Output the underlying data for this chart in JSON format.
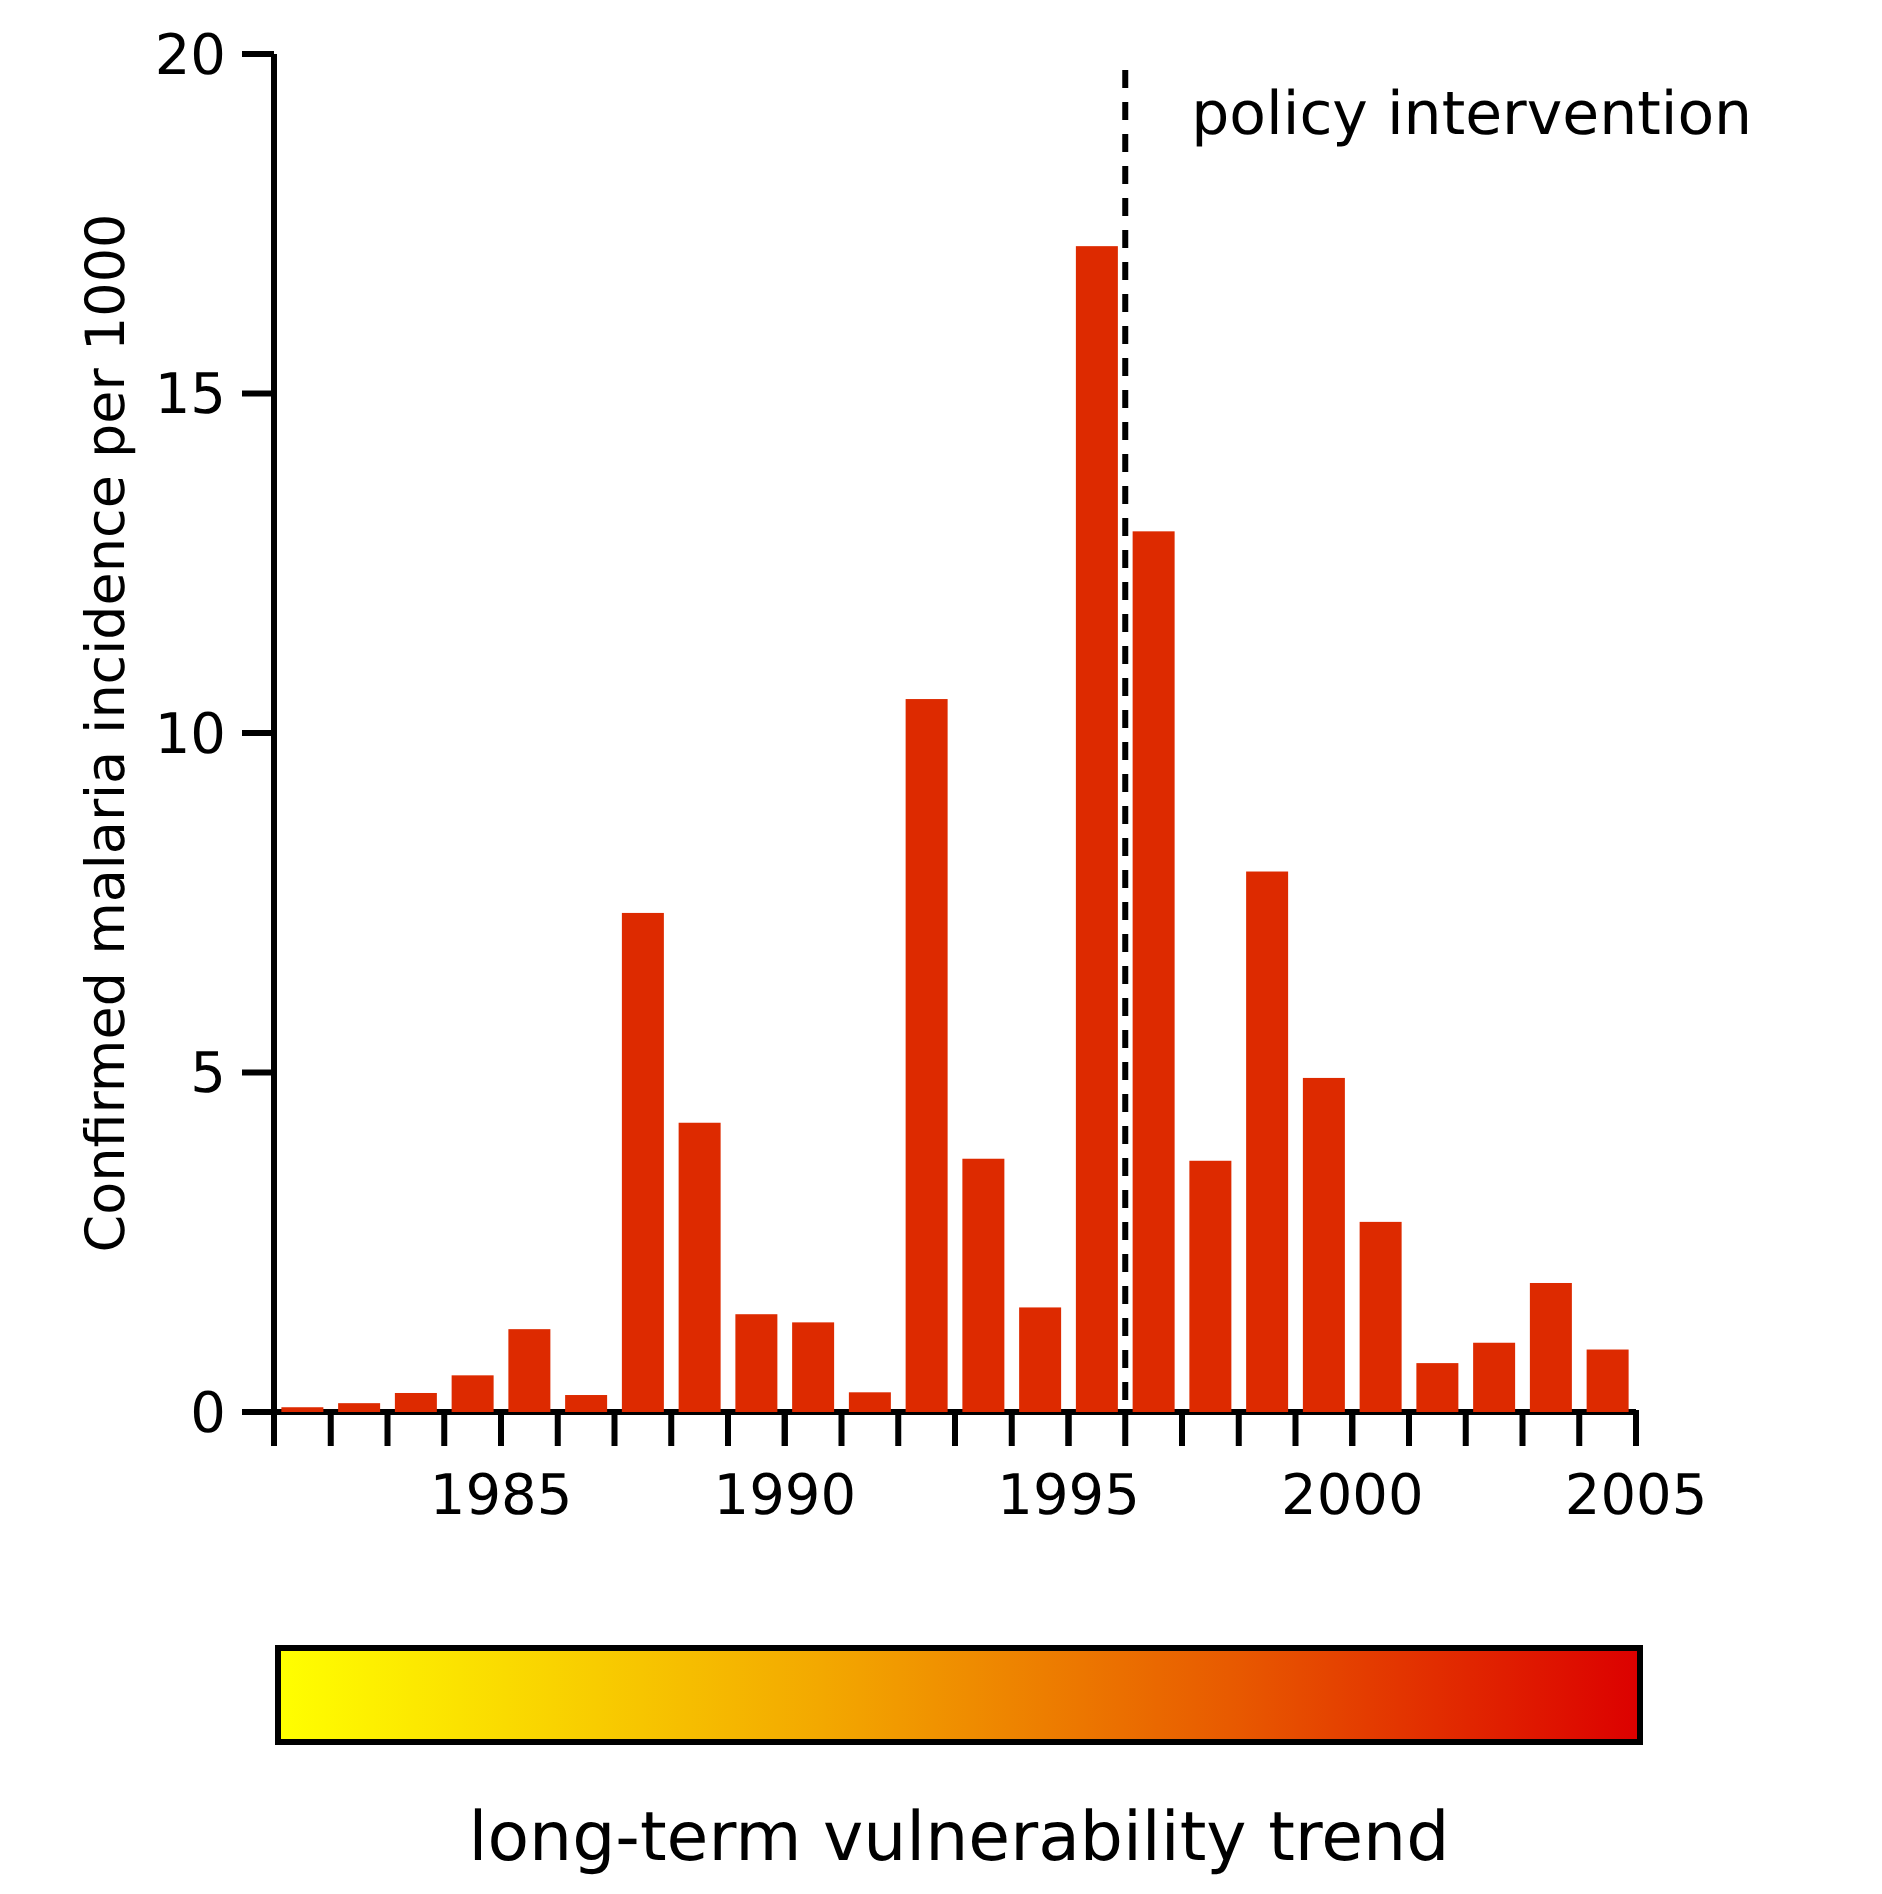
{
  "chart_data": {
    "type": "bar",
    "ylabel": "Confirmed malaria incidence per 1000",
    "clabel": "long-term vulnerability trend",
    "x": [
      1981.5,
      1982.5,
      1983.5,
      1984.5,
      1985.5,
      1986.5,
      1987.5,
      1988.5,
      1989.5,
      1990.5,
      1991.5,
      1992.5,
      1993.5,
      1994.5,
      1995.5,
      1996.5,
      1997.5,
      1998.5,
      1999.5,
      2000.5,
      2001.5,
      2002.5,
      2003.5,
      2004.5
    ],
    "values": [
      0.07,
      0.13,
      0.28,
      0.54,
      1.22,
      0.25,
      7.35,
      4.26,
      1.44,
      1.32,
      0.29,
      10.5,
      3.73,
      1.54,
      17.17,
      12.97,
      3.7,
      7.96,
      4.92,
      2.8,
      0.72,
      1.02,
      1.9,
      0.92
    ],
    "color": "#dd2a00",
    "xlim": [
      1981,
      2005
    ],
    "xticks": [
      1985,
      1990,
      1995,
      2000,
      2005
    ],
    "ylim": [
      0,
      20
    ],
    "yticks": [
      0,
      5,
      10,
      15,
      20
    ],
    "ref_lines": [
      {
        "axis": "x",
        "value": 1996,
        "label": "policy intervention",
        "line_style": "dashed"
      }
    ],
    "grid": false
  }
}
